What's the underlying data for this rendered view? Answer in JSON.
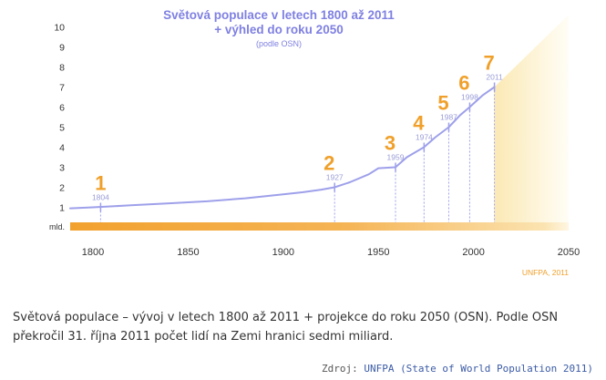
{
  "chart_data": {
    "type": "line",
    "title_line1": "Světová populace v letech 1800 až 2011",
    "title_line2": "+ výhled do roku 2050",
    "subtitle": "(podle OSN)",
    "ylabel": "mld.",
    "xlabel": "",
    "xlim": [
      1788,
      2050
    ],
    "ylim": [
      0,
      10
    ],
    "x_ticks": [
      1800,
      1850,
      1900,
      1950,
      2000,
      2050
    ],
    "y_ticks": [
      1,
      2,
      3,
      4,
      5,
      6,
      7,
      8,
      9,
      10
    ],
    "series": [
      {
        "x": [
          1788,
          1800,
          1820,
          1840,
          1860,
          1880,
          1900,
          1910,
          1920,
          1927,
          1935,
          1945,
          1950,
          1959,
          1965,
          1974,
          1980,
          1987,
          1993,
          1998,
          2005,
          2011
        ],
        "y": [
          0.95,
          1.0,
          1.1,
          1.2,
          1.3,
          1.45,
          1.65,
          1.75,
          1.88,
          2.0,
          2.25,
          2.65,
          2.95,
          3.0,
          3.5,
          4.0,
          4.5,
          5.0,
          5.6,
          6.0,
          6.6,
          7.0
        ]
      }
    ],
    "milestones": [
      {
        "billion": "1",
        "year": "1804"
      },
      {
        "billion": "2",
        "year": "1927"
      },
      {
        "billion": "3",
        "year": "1959"
      },
      {
        "billion": "4",
        "year": "1974"
      },
      {
        "billion": "5",
        "year": "1987"
      },
      {
        "billion": "6",
        "year": "1998"
      },
      {
        "billion": "7",
        "year": "2011"
      }
    ],
    "credit": "UNFPA, 2011",
    "colors": {
      "title": "#7f80e2",
      "line": "#9ea0ea",
      "milestone_number": "#f0a02a",
      "year_label": "#9a9cd8",
      "bar": "#f2a12e",
      "projection": "#fbe9b4",
      "axis_text": "#333333"
    }
  },
  "caption": "Světová populace – vývoj v letech 1800 až 2011 + projekce do roku 2050 (OSN). Podle OSN překročil 31. října 2011 počet lidí na Zemi hranici sedmi miliard.",
  "source": {
    "label": "Zdroj:",
    "link_text": "UNFPA (State of World Population 2011)"
  }
}
